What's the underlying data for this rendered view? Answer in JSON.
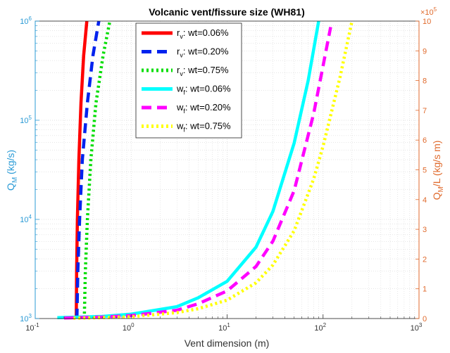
{
  "chart_data": {
    "type": "line",
    "title": "Volcanic vent/fissure size (WH81)",
    "xlabel": "Vent dimension (m)",
    "ylabel_left": {
      "main": "Q",
      "sub": "M",
      "rest": " (kg/s)"
    },
    "ylabel_right": {
      "main": "Q",
      "sub": "M",
      "rest": "/L (kg/s m)"
    },
    "x_scale": "log",
    "xlim": [
      0.1,
      1000
    ],
    "x_ticks": [
      {
        "base": "10",
        "exp": "-1"
      },
      {
        "base": "10",
        "exp": "0"
      },
      {
        "base": "10",
        "exp": "1"
      },
      {
        "base": "10",
        "exp": "2"
      },
      {
        "base": "10",
        "exp": "3"
      }
    ],
    "y_left_scale": "log",
    "y_left_lim": [
      1000,
      1000000
    ],
    "y_left_ticks": [
      {
        "base": "10",
        "exp": "3"
      },
      {
        "base": "10",
        "exp": "4"
      },
      {
        "base": "10",
        "exp": "5"
      },
      {
        "base": "10",
        "exp": "6"
      }
    ],
    "y_right_scale": "linear",
    "y_right_lim": [
      0,
      10
    ],
    "y_right_ticks": [
      "0",
      "1",
      "2",
      "3",
      "4",
      "5",
      "6",
      "7",
      "8",
      "9",
      "10"
    ],
    "y_right_multiplier": {
      "base": "×10",
      "exp": "5"
    },
    "grid": true,
    "legend_position": "top-left",
    "colors": {
      "left_axis": "#2b9bd6",
      "right_axis": "#e06a2c",
      "grid": "#d8d8d8"
    },
    "series": [
      {
        "name": {
          "main": "r",
          "sub": "v",
          "rest": ": wt=0.06%"
        },
        "axis": "left",
        "color": "#ff0000",
        "style": "solid",
        "x": [
          0.268,
          0.27,
          0.275,
          0.285,
          0.3,
          0.32,
          0.345
        ],
        "y": [
          1000,
          3000,
          10000,
          40000,
          150000,
          450000,
          1000000
        ]
      },
      {
        "name": {
          "main": "r",
          "sub": "v",
          "rest": ": wt=0.20%"
        },
        "axis": "left",
        "color": "#0022ee",
        "style": "dashed",
        "x": [
          0.272,
          0.278,
          0.29,
          0.31,
          0.35,
          0.4,
          0.46
        ],
        "y": [
          1000,
          3000,
          10000,
          40000,
          150000,
          450000,
          1000000
        ]
      },
      {
        "name": {
          "main": "r",
          "sub": "v",
          "rest": ": wt=0.75%"
        },
        "axis": "left",
        "color": "#00dd00",
        "style": "dotted",
        "x": [
          0.325,
          0.333,
          0.35,
          0.38,
          0.43,
          0.51,
          0.6
        ],
        "y": [
          1000,
          3000,
          10000,
          40000,
          150000,
          450000,
          1000000
        ]
      },
      {
        "name": {
          "main": "w",
          "sub": "f",
          "rest": ": wt=0.06%"
        },
        "axis": "right",
        "color": "#00ffff",
        "style": "solid",
        "x": [
          0.17,
          0.5,
          1,
          3,
          5,
          10,
          20,
          30,
          50,
          70,
          90
        ],
        "y": [
          0.03,
          0.07,
          0.15,
          0.4,
          0.7,
          1.25,
          2.4,
          3.6,
          5.9,
          8.0,
          10
        ]
      },
      {
        "name": {
          "main": "w",
          "sub": "f",
          "rest": ": wt=0.20%"
        },
        "axis": "right",
        "color": "#ff00ff",
        "style": "dashed",
        "x": [
          0.2,
          0.5,
          1,
          3,
          5,
          10,
          20,
          30,
          50,
          80,
          100,
          120
        ],
        "y": [
          0.02,
          0.05,
          0.1,
          0.28,
          0.5,
          0.93,
          1.75,
          2.6,
          4.3,
          6.9,
          8.5,
          9.8
        ]
      },
      {
        "name": {
          "main": "w",
          "sub": "f",
          "rest": ": wt=0.75%"
        },
        "axis": "right",
        "color": "#ffff00",
        "style": "dotted",
        "x": [
          0.25,
          0.5,
          1,
          3,
          5,
          10,
          20,
          30,
          50,
          80,
          100,
          150,
          200
        ],
        "y": [
          0.01,
          0.03,
          0.06,
          0.2,
          0.33,
          0.62,
          1.2,
          1.8,
          2.95,
          4.7,
          5.8,
          8.1,
          10
        ]
      }
    ]
  }
}
